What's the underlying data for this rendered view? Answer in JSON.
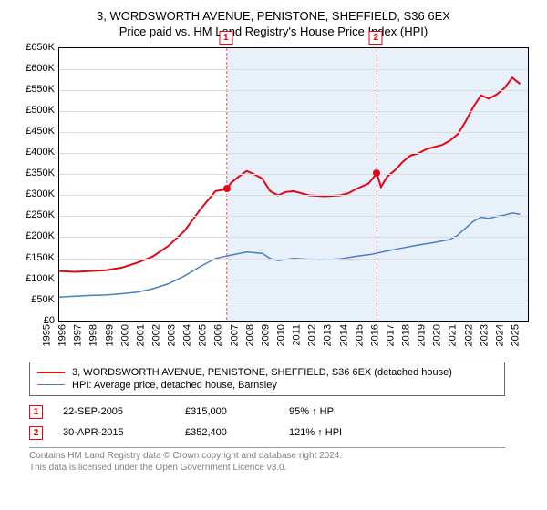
{
  "titles": {
    "line1": "3, WORDSWORTH AVENUE, PENISTONE, SHEFFIELD, S36 6EX",
    "line2": "Price paid vs. HM Land Registry's House Price Index (HPI)"
  },
  "chart": {
    "type": "line",
    "background_color": "#ffffff",
    "grid_color": "#dcdcdc",
    "border_color": "#000000",
    "shade_color": "#e8f0fa",
    "y": {
      "min": 0,
      "max": 650,
      "step": 50,
      "prefix": "£",
      "suffix": "K",
      "fontsize": 11
    },
    "x": {
      "min": 1995,
      "max": 2025,
      "step": 1,
      "fontsize": 11
    },
    "series": [
      {
        "name": "3, WORDSWORTH AVENUE, PENISTONE, SHEFFIELD, S36 6EX (detached house)",
        "color": "#e30613",
        "width": 2,
        "data": [
          [
            1995,
            120
          ],
          [
            1996,
            118
          ],
          [
            1997,
            120
          ],
          [
            1998,
            122
          ],
          [
            1999,
            128
          ],
          [
            2000,
            140
          ],
          [
            2001,
            155
          ],
          [
            2002,
            180
          ],
          [
            2003,
            215
          ],
          [
            2004,
            265
          ],
          [
            2005,
            310
          ],
          [
            2005.73,
            315
          ],
          [
            2006,
            330
          ],
          [
            2006.5,
            345
          ],
          [
            2007,
            358
          ],
          [
            2007.5,
            350
          ],
          [
            2008,
            340
          ],
          [
            2008.5,
            310
          ],
          [
            2009,
            300
          ],
          [
            2009.5,
            308
          ],
          [
            2010,
            310
          ],
          [
            2011,
            300
          ],
          [
            2012,
            298
          ],
          [
            2013,
            300
          ],
          [
            2013.5,
            305
          ],
          [
            2014,
            315
          ],
          [
            2014.8,
            328
          ],
          [
            2015.33,
            352
          ],
          [
            2015.6,
            320
          ],
          [
            2016,
            345
          ],
          [
            2016.5,
            360
          ],
          [
            2017,
            380
          ],
          [
            2017.5,
            395
          ],
          [
            2018,
            400
          ],
          [
            2018.5,
            410
          ],
          [
            2019,
            415
          ],
          [
            2019.5,
            420
          ],
          [
            2020,
            430
          ],
          [
            2020.5,
            445
          ],
          [
            2021,
            475
          ],
          [
            2021.5,
            510
          ],
          [
            2022,
            538
          ],
          [
            2022.5,
            530
          ],
          [
            2023,
            540
          ],
          [
            2023.5,
            555
          ],
          [
            2024,
            580
          ],
          [
            2024.5,
            565
          ]
        ]
      },
      {
        "name": "HPI: Average price, detached house, Barnsley",
        "color": "#4a7fc4",
        "width": 1.5,
        "data": [
          [
            1995,
            58
          ],
          [
            1996,
            60
          ],
          [
            1997,
            62
          ],
          [
            1998,
            63
          ],
          [
            1999,
            66
          ],
          [
            2000,
            70
          ],
          [
            2001,
            78
          ],
          [
            2002,
            90
          ],
          [
            2003,
            108
          ],
          [
            2004,
            130
          ],
          [
            2005,
            150
          ],
          [
            2006,
            158
          ],
          [
            2007,
            165
          ],
          [
            2008,
            162
          ],
          [
            2008.5,
            150
          ],
          [
            2009,
            145
          ],
          [
            2010,
            150
          ],
          [
            2011,
            148
          ],
          [
            2012,
            147
          ],
          [
            2013,
            149
          ],
          [
            2014,
            155
          ],
          [
            2015,
            160
          ],
          [
            2016,
            168
          ],
          [
            2017,
            175
          ],
          [
            2018,
            182
          ],
          [
            2019,
            188
          ],
          [
            2020,
            195
          ],
          [
            2020.5,
            205
          ],
          [
            2021,
            222
          ],
          [
            2021.5,
            238
          ],
          [
            2022,
            248
          ],
          [
            2022.5,
            245
          ],
          [
            2023,
            250
          ],
          [
            2023.5,
            253
          ],
          [
            2024,
            258
          ],
          [
            2024.5,
            255
          ]
        ]
      }
    ],
    "markers": [
      {
        "label": "1",
        "x": 2005.73,
        "y": 315,
        "color": "#e30613"
      },
      {
        "label": "2",
        "x": 2015.33,
        "y": 352,
        "color": "#e30613"
      }
    ]
  },
  "legend_fontsize": 11,
  "sales": [
    {
      "label": "1",
      "date": "22-SEP-2005",
      "price": "£315,000",
      "hpi": "95% ↑ HPI"
    },
    {
      "label": "2",
      "date": "30-APR-2015",
      "price": "£352,400",
      "hpi": "121% ↑ HPI"
    }
  ],
  "footer": {
    "line1": "Contains HM Land Registry data © Crown copyright and database right 2024.",
    "line2": "This data is licensed under the Open Government Licence v3.0."
  }
}
